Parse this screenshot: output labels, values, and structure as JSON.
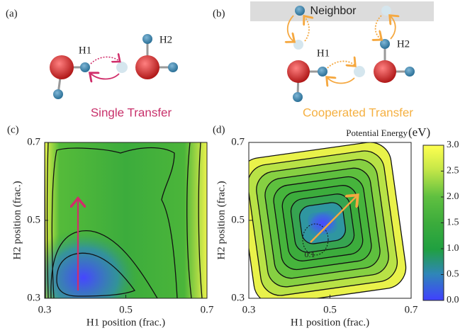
{
  "panels": {
    "a": {
      "label": "(a)",
      "h1": "H1",
      "h2": "H2",
      "caption": "Single Transfer"
    },
    "b": {
      "label": "(b)",
      "neighbor": "Neighbor",
      "h1": "H1",
      "h2": "H2",
      "caption": "Cooperated Transfer"
    }
  },
  "chart_data": [
    {
      "type": "contour",
      "panel_label": "(c)",
      "x_label": "H1 position (frac.)",
      "y_label": "H2 position (frac.)",
      "xlim": [
        0.3,
        0.7
      ],
      "ylim": [
        0.3,
        0.7
      ],
      "xticks": [
        0.3,
        0.5,
        0.7
      ],
      "yticks": [
        0.3,
        0.5,
        0.7
      ]
    },
    {
      "type": "contour",
      "panel_label": "(d)",
      "x_label": "H1 position (frac.)",
      "y_label": "H2 position (frac.)",
      "xlim": [
        0.3,
        0.7
      ],
      "ylim": [
        0.3,
        0.7
      ],
      "xticks": [
        0.3,
        0.5,
        0.7
      ],
      "yticks": [
        0.3,
        0.5,
        0.7
      ],
      "contour_labels": [
        0.1
      ],
      "colorbar": {
        "label": "Potential Energy",
        "unit": "(eV)",
        "lim": [
          0,
          3
        ],
        "ticks": [
          {
            "value": 0,
            "label": "0.0"
          },
          0.5,
          {
            "value": 1,
            "label": "1.0"
          },
          1.5,
          {
            "value": 2,
            "label": "2.0"
          },
          2.5,
          {
            "value": 3,
            "label": "3.0"
          }
        ]
      }
    }
  ]
}
